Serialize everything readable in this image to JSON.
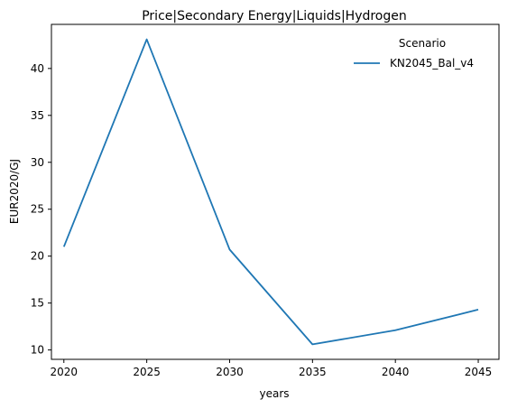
{
  "chart_data": {
    "type": "line",
    "title": "Price|Secondary Energy|Liquids|Hydrogen",
    "xlabel": "years",
    "ylabel": "EUR2020/GJ",
    "x": [
      2020,
      2025,
      2030,
      2035,
      2040,
      2045
    ],
    "xticks": [
      "2020",
      "2025",
      "2030",
      "2035",
      "2040",
      "2045"
    ],
    "xlim": [
      2019.25,
      2046.25
    ],
    "yticks": [
      10,
      15,
      20,
      25,
      30,
      35,
      40
    ],
    "ylim": [
      9.0,
      44.7
    ],
    "grid": false,
    "legend": {
      "title": "Scenario",
      "placement": "top-right"
    },
    "series": [
      {
        "name": "KN2045_Bal_v4",
        "color": "#1f77b4",
        "values": [
          21.0,
          43.1,
          20.7,
          10.6,
          12.1,
          14.3
        ]
      }
    ]
  }
}
